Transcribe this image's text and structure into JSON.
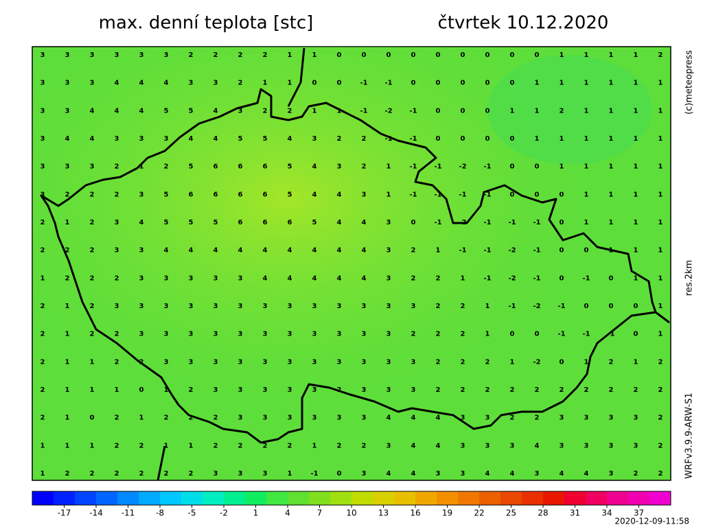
{
  "header": {
    "title": "max. denní teplota [stc]",
    "date": "čtvrtek 10.12.2020"
  },
  "side_labels": {
    "copyright": "(c)meteopress",
    "resolution": "res.2km",
    "model": "WRFv3.9.9-ARW-S1"
  },
  "timestamp": "2020-12-09-11:58",
  "grid": [
    [
      3,
      3,
      3,
      3,
      3,
      3,
      2,
      2,
      2,
      2,
      1,
      1,
      0,
      0,
      0,
      0,
      0,
      0,
      0,
      0,
      0,
      1,
      1,
      1,
      1,
      2
    ],
    [
      3,
      3,
      3,
      4,
      4,
      4,
      3,
      3,
      2,
      1,
      1,
      0,
      0,
      -1,
      -1,
      0,
      0,
      0,
      0,
      0,
      1,
      1,
      1,
      1,
      1,
      1
    ],
    [
      3,
      3,
      4,
      4,
      4,
      5,
      5,
      4,
      3,
      2,
      2,
      1,
      1,
      -1,
      -2,
      -1,
      0,
      0,
      0,
      1,
      1,
      2,
      1,
      1,
      1,
      1
    ],
    [
      3,
      4,
      4,
      3,
      3,
      3,
      4,
      4,
      5,
      5,
      4,
      3,
      2,
      2,
      -1,
      -1,
      0,
      0,
      0,
      0,
      1,
      1,
      1,
      1,
      1,
      1
    ],
    [
      3,
      3,
      3,
      2,
      1,
      2,
      5,
      6,
      6,
      6,
      5,
      4,
      3,
      2,
      1,
      -1,
      -1,
      -2,
      -1,
      0,
      0,
      1,
      1,
      1,
      1,
      1
    ],
    [
      3,
      2,
      2,
      2,
      3,
      5,
      6,
      6,
      6,
      6,
      5,
      4,
      4,
      3,
      1,
      -1,
      -1,
      -1,
      -1,
      0,
      0,
      0,
      1,
      1,
      1,
      1
    ],
    [
      2,
      1,
      2,
      3,
      4,
      5,
      5,
      5,
      6,
      6,
      6,
      5,
      4,
      4,
      3,
      0,
      -1,
      -2,
      -1,
      -1,
      -1,
      0,
      1,
      1,
      1,
      1
    ],
    [
      2,
      2,
      2,
      3,
      3,
      4,
      4,
      4,
      4,
      4,
      4,
      4,
      4,
      4,
      3,
      2,
      1,
      -1,
      -1,
      -2,
      -1,
      0,
      0,
      1,
      1,
      1
    ],
    [
      1,
      2,
      2,
      2,
      3,
      3,
      3,
      3,
      3,
      4,
      4,
      4,
      4,
      4,
      3,
      2,
      2,
      1,
      -1,
      -2,
      -1,
      0,
      -1,
      0,
      1,
      1
    ],
    [
      2,
      1,
      2,
      3,
      3,
      3,
      3,
      3,
      3,
      3,
      3,
      3,
      3,
      3,
      3,
      3,
      2,
      2,
      1,
      -1,
      -2,
      -1,
      0,
      0,
      0,
      1
    ],
    [
      2,
      1,
      2,
      2,
      3,
      3,
      3,
      3,
      3,
      3,
      3,
      3,
      3,
      3,
      3,
      2,
      2,
      2,
      1,
      0,
      0,
      -1,
      -1,
      -1,
      0,
      1
    ],
    [
      2,
      1,
      1,
      2,
      2,
      3,
      3,
      3,
      3,
      3,
      3,
      3,
      3,
      3,
      3,
      3,
      2,
      2,
      2,
      1,
      -2,
      0,
      1,
      2,
      1,
      2
    ],
    [
      2,
      1,
      1,
      1,
      0,
      1,
      2,
      3,
      3,
      3,
      3,
      3,
      2,
      3,
      3,
      3,
      2,
      2,
      2,
      2,
      2,
      2,
      2,
      2,
      2,
      2
    ],
    [
      2,
      1,
      0,
      2,
      1,
      2,
      2,
      2,
      3,
      3,
      3,
      3,
      3,
      3,
      4,
      4,
      4,
      3,
      3,
      2,
      2,
      3,
      3,
      3,
      3,
      2
    ],
    [
      1,
      1,
      1,
      2,
      2,
      1,
      1,
      2,
      2,
      2,
      2,
      1,
      2,
      2,
      3,
      4,
      4,
      3,
      3,
      3,
      4,
      3,
      3,
      3,
      3,
      2
    ],
    [
      1,
      2,
      2,
      2,
      2,
      2,
      2,
      3,
      3,
      3,
      1,
      -1,
      0,
      3,
      4,
      4,
      3,
      3,
      4,
      4,
      3,
      4,
      4,
      3,
      2,
      2
    ]
  ],
  "colorbar": {
    "lim": [
      -20,
      40
    ],
    "ticks": [
      -17,
      -14,
      -11,
      -8,
      -5,
      -2,
      1,
      4,
      7,
      10,
      13,
      16,
      19,
      22,
      25,
      28,
      31,
      34,
      37
    ],
    "colors": [
      "#0000ff",
      "#0022ff",
      "#0044ff",
      "#0066ff",
      "#0088ff",
      "#00aaff",
      "#00c8ff",
      "#00dde8",
      "#00eec0",
      "#00f090",
      "#10ee60",
      "#40e840",
      "#60e030",
      "#80e020",
      "#a0e010",
      "#c0dc00",
      "#d8d000",
      "#e8c000",
      "#f0a800",
      "#f49000",
      "#f07800",
      "#ec6000",
      "#e84800",
      "#e83000",
      "#e81800",
      "#f00030",
      "#f00060",
      "#f00090",
      "#f000b0",
      "#f000d0"
    ]
  }
}
